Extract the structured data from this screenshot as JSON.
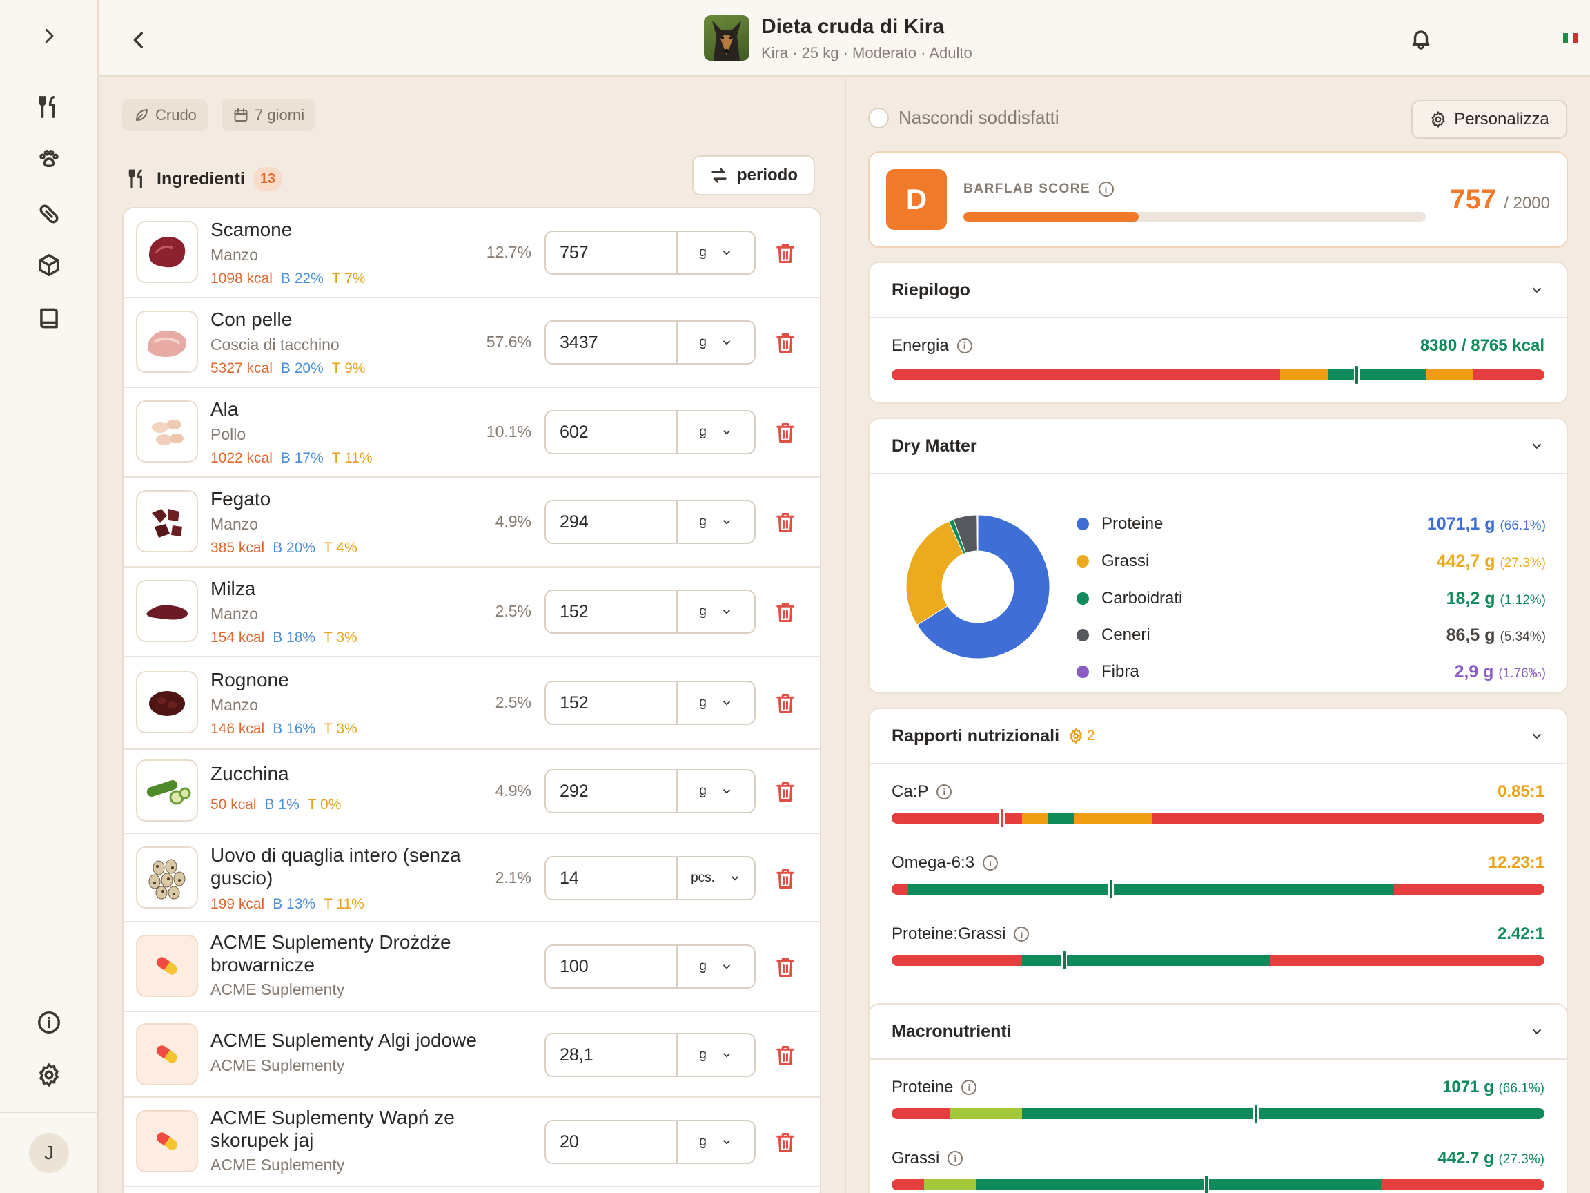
{
  "header": {
    "title": "Dieta cruda di Kira",
    "subtitle": "Kira · 25 kg · Moderato · Adulto"
  },
  "sidebar": {
    "avatar_initial": "J",
    "items": [
      "expand-icon",
      "diet-icon",
      "paw-icon",
      "pill-icon",
      "box-icon",
      "book-icon",
      "info-icon",
      "gear-icon"
    ]
  },
  "filters": {
    "chip1": "Crudo",
    "chip2": "7 giorni"
  },
  "ingredients": {
    "heading": "Ingredienti",
    "count": "13",
    "period_button": "periodo",
    "rows": [
      {
        "name": "Scamone",
        "sub": "Manzo",
        "kcal": "1098 kcal",
        "b": "B 22%",
        "t": "T 7%",
        "pct": "12.7%",
        "qty": "757",
        "unit": "g"
      },
      {
        "name": "Con pelle",
        "sub": "Coscia di tacchino",
        "kcal": "5327 kcal",
        "b": "B 20%",
        "t": "T 9%",
        "pct": "57.6%",
        "qty": "3437",
        "unit": "g"
      },
      {
        "name": "Ala",
        "sub": "Pollo",
        "kcal": "1022 kcal",
        "b": "B 17%",
        "t": "T 11%",
        "pct": "10.1%",
        "qty": "602",
        "unit": "g"
      },
      {
        "name": "Fegato",
        "sub": "Manzo",
        "kcal": "385 kcal",
        "b": "B 20%",
        "t": "T 4%",
        "pct": "4.9%",
        "qty": "294",
        "unit": "g"
      },
      {
        "name": "Milza",
        "sub": "Manzo",
        "kcal": "154 kcal",
        "b": "B 18%",
        "t": "T 3%",
        "pct": "2.5%",
        "qty": "152",
        "unit": "g"
      },
      {
        "name": "Rognone",
        "sub": "Manzo",
        "kcal": "146 kcal",
        "b": "B 16%",
        "t": "T 3%",
        "pct": "2.5%",
        "qty": "152",
        "unit": "g"
      },
      {
        "name": "Zucchina",
        "sub": "",
        "kcal": "50 kcal",
        "b": "B 1%",
        "t": "T 0%",
        "pct": "4.9%",
        "qty": "292",
        "unit": "g"
      },
      {
        "name": "Uovo di quaglia intero (senza guscio)",
        "sub": "",
        "kcal": "199 kcal",
        "b": "B 13%",
        "t": "T 11%",
        "pct": "2.1%",
        "qty": "14",
        "unit": "pcs."
      },
      {
        "name": "ACME Suplementy Drożdże browarnicze",
        "sub": "ACME Suplementy",
        "kcal": "",
        "b": "",
        "t": "",
        "pct": "",
        "qty": "100",
        "unit": "g"
      },
      {
        "name": "ACME Suplementy Algi jodowe",
        "sub": "ACME Suplementy",
        "kcal": "",
        "b": "",
        "t": "",
        "pct": "",
        "qty": "28,1",
        "unit": "g"
      },
      {
        "name": "ACME Suplementy Wapń ze skorupek jaj",
        "sub": "ACME Suplementy",
        "kcal": "",
        "b": "",
        "t": "",
        "pct": "",
        "qty": "20",
        "unit": "g"
      }
    ]
  },
  "right": {
    "hide_satisfied": "Nascondi soddisfatti",
    "customize": "Personalizza",
    "score": {
      "grade": "D",
      "label": "BARFLAB SCORE",
      "value": "757",
      "max": "/ 2000",
      "fraction": 0.3785
    },
    "summary": {
      "title": "Riepilogo",
      "energy_label": "Energia",
      "energy_value": "8380 / 8765 kcal"
    },
    "dry_matter": {
      "title": "Dry Matter",
      "items": [
        {
          "label": "Proteine",
          "value": "1071,1 g",
          "pct": "(66.1%)",
          "color": "#3f6fd6",
          "share": 66.1
        },
        {
          "label": "Grassi",
          "value": "442,7 g",
          "pct": "(27.3%)",
          "color": "#ecab1f",
          "share": 27.3
        },
        {
          "label": "Carboidrati",
          "value": "18,2 g",
          "pct": "(1.12%)",
          "color": "#0f8a5a",
          "share": 1.12
        },
        {
          "label": "Ceneri",
          "value": "86,5 g",
          "pct": "(5.34%)",
          "color": "#55595e",
          "share": 5.34
        },
        {
          "label": "Fibra",
          "value": "2,9 g",
          "pct": "(1.76‰)",
          "color": "#8b5bc6",
          "share": 0.176
        }
      ]
    },
    "ratios": {
      "title": "Rapporti nutrizionali",
      "badge": "2",
      "items": [
        {
          "label": "Ca:P",
          "value": "0.85:1",
          "color": "#e9a21a"
        },
        {
          "label": "Omega-6:3",
          "value": "12.23:1",
          "color": "#e9a21a"
        },
        {
          "label": "Proteine:Grassi",
          "value": "2.42:1",
          "color": "#0f8a5a"
        }
      ]
    },
    "macros": {
      "title": "Macronutrienti",
      "items": [
        {
          "label": "Proteine",
          "value": "1071 g",
          "pct": "(66.1%)"
        },
        {
          "label": "Grassi",
          "value": "442.7 g",
          "pct": "(27.3%)"
        }
      ]
    }
  }
}
